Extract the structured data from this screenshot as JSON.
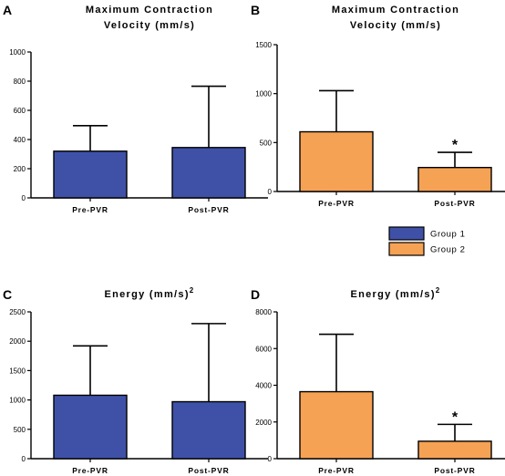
{
  "legend": [
    {
      "name": "Group 1",
      "color": "#3f51a7"
    },
    {
      "name": "Group 2",
      "color": "#f6a255"
    }
  ],
  "chart_data": [
    {
      "panel": "A",
      "type": "bar",
      "title_lines": [
        "Maximum Contraction",
        "Velocity (mm/s)"
      ],
      "categories": [
        "Pre-PVR",
        "Post-PVR"
      ],
      "series": [
        {
          "name": "Group 1",
          "values": [
            320,
            345
          ],
          "error_upper": [
            495,
            765
          ]
        }
      ],
      "color": "#3f51a7",
      "ylim": [
        0,
        1000
      ],
      "yticks": [
        0,
        200,
        400,
        600,
        800,
        1000
      ],
      "significance": [
        "",
        ""
      ]
    },
    {
      "panel": "B",
      "type": "bar",
      "title_lines": [
        "Maximum Contraction",
        "Velocity (mm/s)"
      ],
      "categories": [
        "Pre-PVR",
        "Post-PVR"
      ],
      "series": [
        {
          "name": "Group 2",
          "values": [
            610,
            245
          ],
          "error_upper": [
            1030,
            400
          ]
        }
      ],
      "color": "#f6a255",
      "ylim": [
        0,
        1500
      ],
      "yticks": [
        0,
        500,
        1000,
        1500
      ],
      "significance": [
        "",
        "*"
      ]
    },
    {
      "panel": "C",
      "type": "bar",
      "title_lines": [
        "Energy (mm/s)"
      ],
      "title_superscript": "2",
      "categories": [
        "Pre-PVR",
        "Post-PVR"
      ],
      "series": [
        {
          "name": "Group 1",
          "values": [
            1080,
            970
          ],
          "error_upper": [
            1920,
            2300
          ]
        }
      ],
      "color": "#3f51a7",
      "ylim": [
        0,
        2500
      ],
      "yticks": [
        0,
        500,
        1000,
        1500,
        2000,
        2500
      ],
      "significance": [
        "",
        ""
      ]
    },
    {
      "panel": "D",
      "type": "bar",
      "title_lines": [
        "Energy (mm/s)"
      ],
      "title_superscript": "2",
      "categories": [
        "Pre-PVR",
        "Post-PVR"
      ],
      "series": [
        {
          "name": "Group 2",
          "values": [
            3650,
            950
          ],
          "error_upper": [
            6780,
            1870
          ]
        }
      ],
      "color": "#f6a255",
      "ylim": [
        0,
        8000
      ],
      "yticks": [
        0,
        2000,
        4000,
        6000,
        8000
      ],
      "significance": [
        "",
        "*"
      ]
    }
  ]
}
